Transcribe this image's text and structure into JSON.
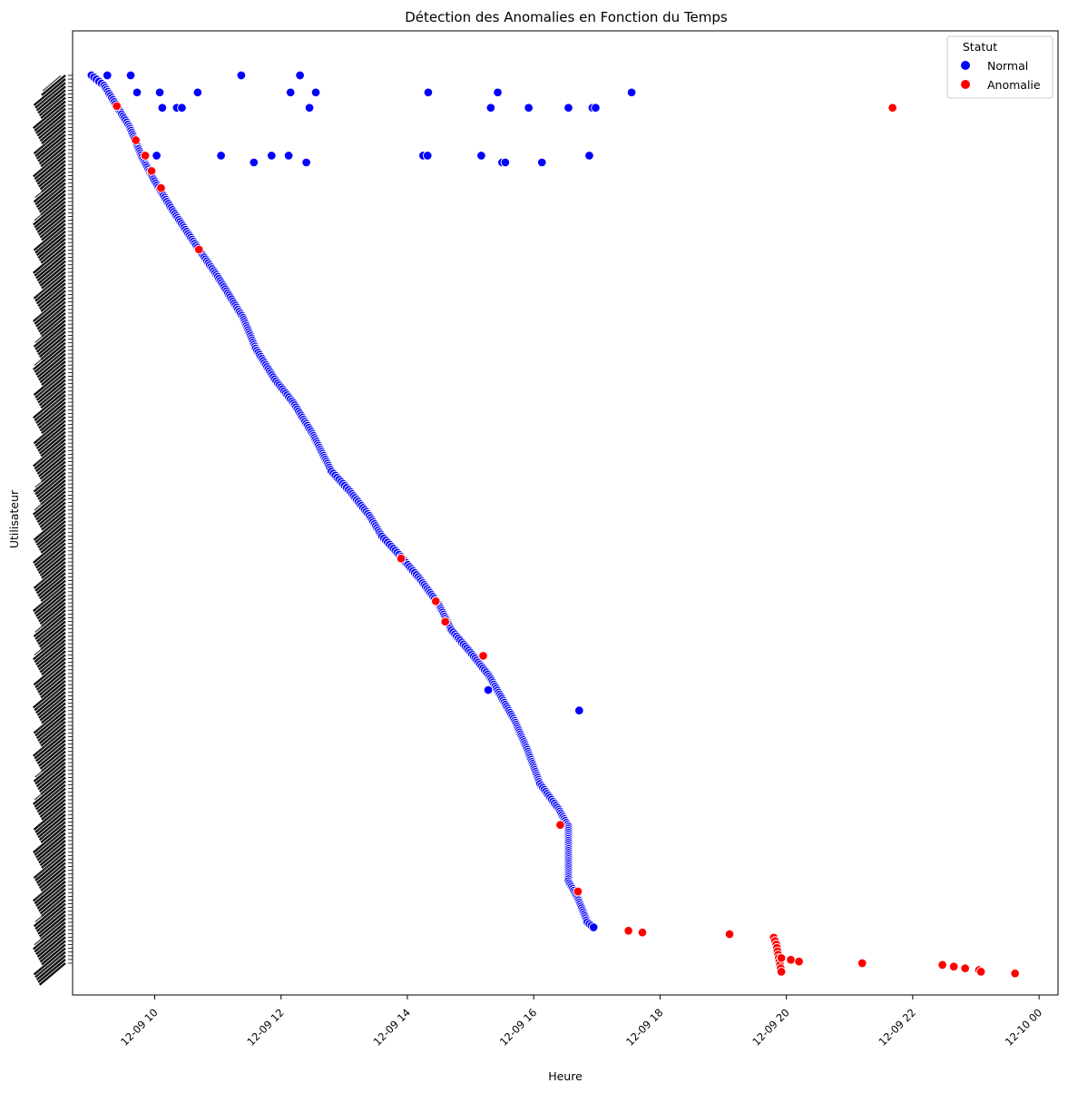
{
  "chart_data": {
    "type": "scatter",
    "title": "Détection des Anomalies en Fonction du Temps",
    "xlabel": "Heure",
    "ylabel": "Utilisateur",
    "x_unit": "hours (2023-12-09 time of day)",
    "xlim": [
      8.7,
      24.3
    ],
    "x_ticks": [
      {
        "value": 10,
        "label": "12-09 10"
      },
      {
        "value": 12,
        "label": "12-09 12"
      },
      {
        "value": 14,
        "label": "12-09 14"
      },
      {
        "value": 16,
        "label": "12-09 16"
      },
      {
        "value": 18,
        "label": "12-09 18"
      },
      {
        "value": 20,
        "label": "12-09 20"
      },
      {
        "value": 22,
        "label": "12-09 22"
      },
      {
        "value": 24,
        "label": "12-10 00"
      }
    ],
    "ytick_labels": "overlapping unreadable user identifiers (one per user, ~520 users)",
    "y_unit": "user index (0 = top)",
    "ylim": [
      0,
      520
    ],
    "legend": {
      "title": "Statut",
      "position": "top-right",
      "entries": [
        {
          "label": "Normal",
          "color": "#0000ff"
        },
        {
          "label": "Anomalie",
          "color": "#ff0000"
        }
      ]
    },
    "series": [
      {
        "name": "Normal",
        "color": "#0000ff",
        "points": [
          [
            9.25,
            0
          ],
          [
            9.62,
            0
          ],
          [
            11.37,
            0
          ],
          [
            12.3,
            0
          ],
          [
            9.72,
            10
          ],
          [
            10.08,
            10
          ],
          [
            10.68,
            10
          ],
          [
            12.15,
            10
          ],
          [
            12.55,
            10
          ],
          [
            14.33,
            10
          ],
          [
            15.43,
            10
          ],
          [
            17.55,
            10
          ],
          [
            10.12,
            19
          ],
          [
            10.35,
            19
          ],
          [
            10.43,
            19
          ],
          [
            12.45,
            19
          ],
          [
            15.32,
            19
          ],
          [
            15.92,
            19
          ],
          [
            16.55,
            19
          ],
          [
            16.93,
            19
          ],
          [
            16.98,
            19
          ],
          [
            10.03,
            47
          ],
          [
            11.05,
            47
          ],
          [
            11.85,
            47
          ],
          [
            12.12,
            47
          ],
          [
            14.25,
            47
          ],
          [
            14.32,
            47
          ],
          [
            15.17,
            47
          ],
          [
            16.88,
            47
          ],
          [
            11.57,
            51
          ],
          [
            12.4,
            51
          ],
          [
            15.5,
            51
          ],
          [
            15.55,
            51
          ],
          [
            16.13,
            51
          ],
          [
            15.28,
            360
          ],
          [
            16.72,
            372
          ]
        ],
        "path": [
          [
            9.0,
            0
          ],
          [
            9.2,
            6
          ],
          [
            9.4,
            18
          ],
          [
            9.6,
            30
          ],
          [
            9.8,
            48
          ],
          [
            10.0,
            62
          ],
          [
            10.3,
            80
          ],
          [
            10.7,
            102
          ],
          [
            11.0,
            118
          ],
          [
            11.4,
            142
          ],
          [
            11.6,
            160
          ],
          [
            11.9,
            178
          ],
          [
            12.2,
            192
          ],
          [
            12.5,
            210
          ],
          [
            12.8,
            232
          ],
          [
            13.1,
            244
          ],
          [
            13.4,
            258
          ],
          [
            13.6,
            270
          ],
          [
            13.9,
            282
          ],
          [
            14.2,
            295
          ],
          [
            14.5,
            310
          ],
          [
            14.7,
            325
          ],
          [
            15.0,
            338
          ],
          [
            15.3,
            352
          ],
          [
            15.5,
            365
          ],
          [
            15.7,
            378
          ],
          [
            15.9,
            395
          ],
          [
            16.1,
            415
          ],
          [
            16.4,
            430
          ],
          [
            16.55,
            440
          ],
          [
            16.55,
            472
          ],
          [
            16.7,
            482
          ],
          [
            16.85,
            496
          ],
          [
            16.98,
            500
          ]
        ]
      },
      {
        "name": "Anomalie",
        "color": "#ff0000",
        "points": [
          [
            9.4,
            18
          ],
          [
            9.7,
            38
          ],
          [
            9.85,
            47
          ],
          [
            9.95,
            56
          ],
          [
            10.1,
            66
          ],
          [
            10.7,
            102
          ],
          [
            13.9,
            283
          ],
          [
            14.45,
            308
          ],
          [
            14.6,
            320
          ],
          [
            15.2,
            340
          ],
          [
            16.42,
            439
          ],
          [
            16.7,
            478
          ],
          [
            17.5,
            501
          ],
          [
            17.72,
            502
          ],
          [
            19.1,
            503
          ],
          [
            19.8,
            505
          ],
          [
            19.82,
            507
          ],
          [
            19.84,
            509
          ],
          [
            19.85,
            511
          ],
          [
            19.86,
            513
          ],
          [
            19.87,
            515
          ],
          [
            19.88,
            517
          ],
          [
            19.89,
            519
          ],
          [
            19.9,
            521
          ],
          [
            19.91,
            523
          ],
          [
            19.92,
            525
          ],
          [
            19.92,
            517
          ],
          [
            20.07,
            518
          ],
          [
            20.2,
            519
          ],
          [
            21.2,
            520
          ],
          [
            21.68,
            19
          ],
          [
            22.47,
            521
          ],
          [
            22.65,
            522
          ],
          [
            22.83,
            523
          ],
          [
            23.05,
            524
          ],
          [
            23.08,
            525
          ],
          [
            23.62,
            526
          ]
        ]
      }
    ]
  }
}
